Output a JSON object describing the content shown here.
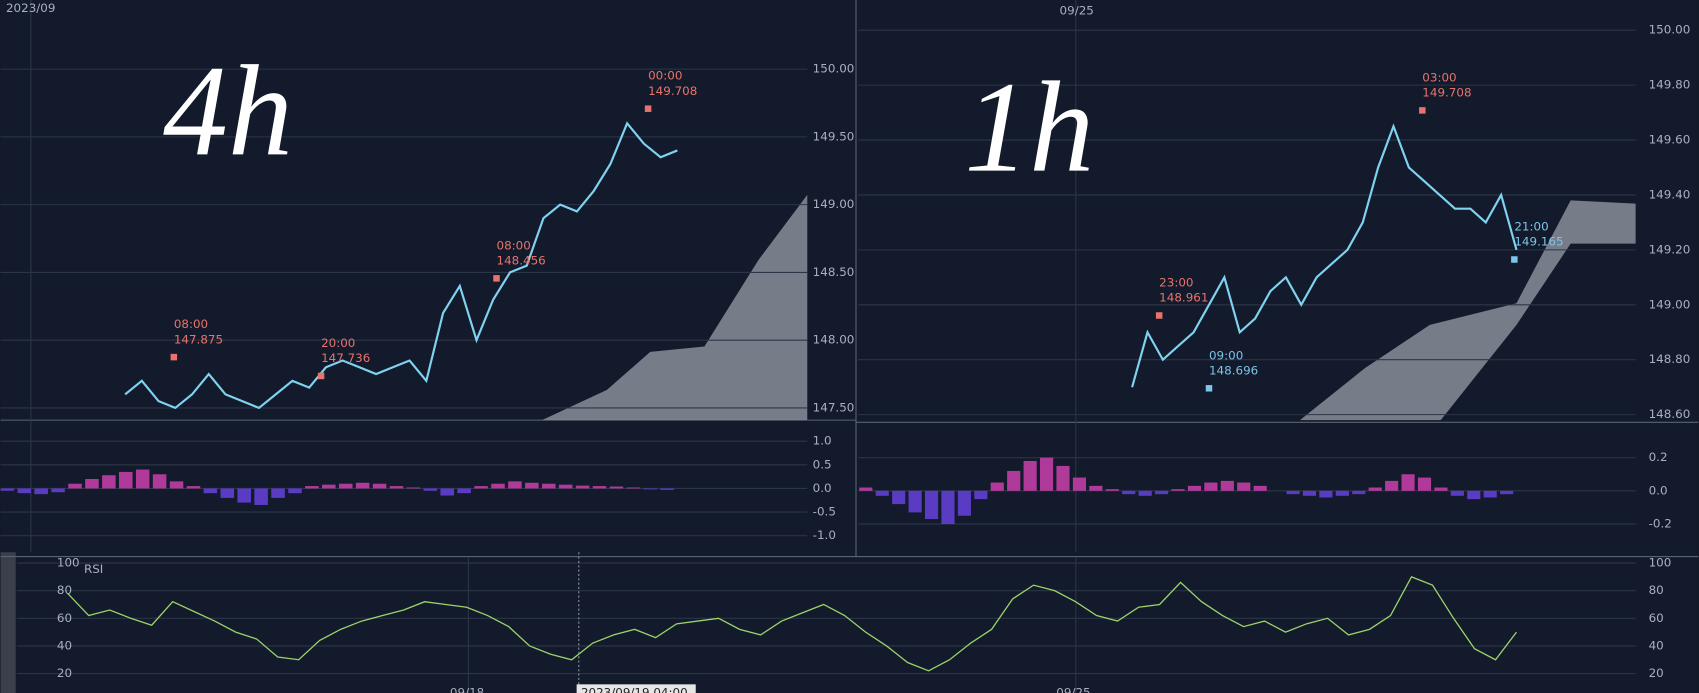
{
  "panels": [
    {
      "date_label": "2023/09",
      "handwriting": "4h",
      "price": {
        "ylim": [
          147.41,
          150.51
        ],
        "yticks": [
          {
            "value": 147.5,
            "label": "147.50"
          },
          {
            "value": 148,
            "label": "148.00"
          },
          {
            "value": 148.5,
            "label": "148.50"
          },
          {
            "value": 149,
            "label": "149.00"
          },
          {
            "value": 149.5,
            "label": "149.50"
          },
          {
            "value": 150,
            "label": "150.00"
          }
        ],
        "close": [
          147.6,
          147.7,
          147.55,
          147.5,
          147.6,
          147.75,
          147.6,
          147.55,
          147.5,
          147.6,
          147.7,
          147.65,
          147.8,
          147.85,
          147.8,
          147.75,
          147.8,
          147.85,
          147.7,
          148.2,
          148.4,
          148.0,
          148.3,
          148.5,
          148.55,
          148.9,
          149.0,
          148.95,
          149.1,
          149.3,
          149.6,
          149.45,
          149.35,
          149.4
        ]
      },
      "annotations": [
        {
          "time": "08:00",
          "price": 147.875,
          "color": "#e8736c"
        },
        {
          "time": "20:00",
          "price": 147.736,
          "color": "#e8736c"
        },
        {
          "time": "08:00",
          "price": 148.456,
          "color": "#e8736c"
        },
        {
          "time": "00:00",
          "price": 149.708,
          "color": "#e8736c"
        }
      ],
      "macd": {
        "ylim": [
          -1.35,
          1.4
        ],
        "yticks": [
          {
            "value": -1,
            "label": "-1.0"
          },
          {
            "value": -0.5,
            "label": "-0.5"
          },
          {
            "value": 0,
            "label": "0.0"
          },
          {
            "value": 0.5,
            "label": "0.5"
          },
          {
            "value": 1,
            "label": "1.0"
          }
        ],
        "histogram": [
          -0.05,
          -0.1,
          -0.12,
          -0.08,
          0.1,
          0.2,
          0.28,
          0.35,
          0.4,
          0.3,
          0.15,
          0.05,
          -0.1,
          -0.2,
          -0.3,
          -0.35,
          -0.2,
          -0.1,
          0.05,
          0.08,
          0.1,
          0.12,
          0.1,
          0.05,
          0.02,
          -0.05,
          -0.15,
          -0.1,
          0.05,
          0.1,
          0.15,
          0.12,
          0.1,
          0.08,
          0.06,
          0.05,
          0.04,
          0.02,
          -0.02,
          -0.03
        ]
      }
    },
    {
      "date_label": "09/25",
      "handwriting": "1h",
      "price": {
        "ylim": [
          148.58,
          150.11
        ],
        "yticks": [
          {
            "value": 148.6,
            "label": "148.60"
          },
          {
            "value": 148.8,
            "label": "148.80"
          },
          {
            "value": 149,
            "label": "149.00"
          },
          {
            "value": 149.2,
            "label": "149.20"
          },
          {
            "value": 149.4,
            "label": "149.40"
          },
          {
            "value": 149.6,
            "label": "149.60"
          },
          {
            "value": 149.8,
            "label": "149.80"
          },
          {
            "value": 150,
            "label": "150.00"
          }
        ],
        "close": [
          148.7,
          148.9,
          148.8,
          148.85,
          148.9,
          149.0,
          149.1,
          148.9,
          148.95,
          149.05,
          149.1,
          149.0,
          149.1,
          149.15,
          149.2,
          149.3,
          149.5,
          149.65,
          149.5,
          149.45,
          149.4,
          149.35,
          149.35,
          149.3,
          149.4,
          149.2
        ]
      },
      "annotations": [
        {
          "time": "23:00",
          "price": 148.961,
          "color": "#e8736c"
        },
        {
          "time": "09:00",
          "price": 148.696,
          "color": "#7cc4e8"
        },
        {
          "time": "03:00",
          "price": 149.708,
          "color": "#e8736c"
        },
        {
          "time": "21:00",
          "price": 149.165,
          "color": "#7cc4e8"
        }
      ],
      "macd": {
        "ylim": [
          -0.37,
          0.4
        ],
        "yticks": [
          -0.2,
          {
            "value": 0,
            "label": "0.0"
          },
          0.2
        ],
        "histogram": [
          0.02,
          -0.03,
          -0.08,
          -0.13,
          -0.17,
          -0.2,
          -0.15,
          -0.05,
          0.05,
          0.12,
          0.18,
          0.2,
          0.15,
          0.08,
          0.03,
          0.01,
          -0.02,
          -0.03,
          -0.02,
          0.01,
          0.03,
          0.05,
          0.06,
          0.05,
          0.03,
          0.0,
          -0.02,
          -0.03,
          -0.04,
          -0.03,
          -0.02,
          0.02,
          0.06,
          0.1,
          0.08,
          0.02,
          -0.03,
          -0.05,
          -0.04,
          -0.02
        ]
      }
    }
  ],
  "rsi": {
    "title": "RSI",
    "ylim": [
      12.2,
      103.9
    ],
    "yticks": [
      20,
      40,
      60,
      80,
      100
    ],
    "values": [
      78,
      62,
      66,
      60,
      55,
      72,
      65,
      58,
      50,
      45,
      32,
      30,
      44,
      52,
      58,
      62,
      66,
      72,
      70,
      68,
      62,
      54,
      40,
      34,
      30,
      42,
      48,
      52,
      46,
      56,
      58,
      60,
      52,
      48,
      58,
      64,
      70,
      62,
      50,
      40,
      28,
      22,
      30,
      42,
      52,
      74,
      84,
      80,
      72,
      62,
      58,
      68,
      70,
      86,
      72,
      62,
      54,
      58,
      50,
      56,
      60,
      48,
      52,
      62,
      90,
      84,
      60,
      38,
      30,
      50
    ],
    "x_labels": [
      "09/18",
      "2023/09/19 04:00",
      "09/25"
    ]
  }
}
